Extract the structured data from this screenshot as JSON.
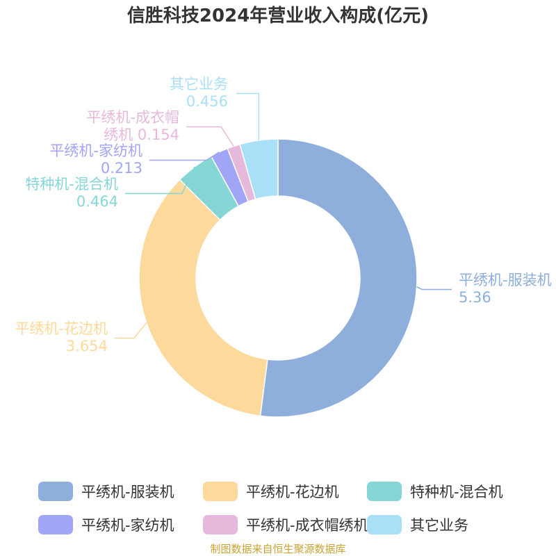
{
  "chart_data": {
    "type": "pie",
    "variant": "donut",
    "title": "信胜科技2024年营业收入构成(亿元)",
    "slices": [
      {
        "name": "平绣机-服装机",
        "label_lines": [
          "平绣机-服装机"
        ],
        "value": 5.36,
        "value_text": "5.36",
        "color": "#8eaedb"
      },
      {
        "name": "平绣机-花边机",
        "label_lines": [
          "平绣机-花边机"
        ],
        "value": 3.654,
        "value_text": "3.654",
        "color": "#fdd99b"
      },
      {
        "name": "特种机-混合机",
        "label_lines": [
          "特种机-混合机"
        ],
        "value": 0.464,
        "value_text": "0.464",
        "color": "#86d6d6"
      },
      {
        "name": "平绣机-家纺机",
        "label_lines": [
          "平绣机-家纺机"
        ],
        "value": 0.213,
        "value_text": "0.213",
        "color": "#a0a5f5"
      },
      {
        "name": "平绣机-成衣帽绣机",
        "label_lines": [
          "平绣机-成衣帽",
          "绣机"
        ],
        "value": 0.154,
        "value_text": "0.154",
        "color": "#e6b9dc"
      },
      {
        "name": "其它业务",
        "label_lines": [
          "其它业务"
        ],
        "value": 0.456,
        "value_text": "0.456",
        "color": "#a9e0f8"
      }
    ],
    "legend_placement": "bottom"
  },
  "source": "制图数据来自恒生聚源数据库"
}
